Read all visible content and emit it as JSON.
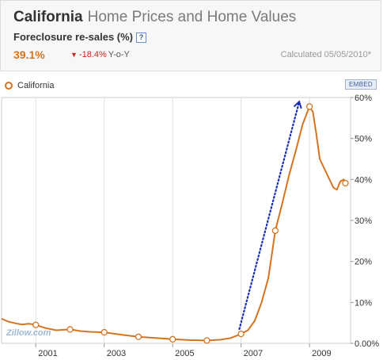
{
  "header": {
    "state": "California",
    "title_rest": "Home Prices and Home Values",
    "metric_label": "Foreclosure re-sales (%)",
    "help_label": "?",
    "current_value": "39.1%",
    "change": "-18.4%",
    "change_suffix": "Y-o-Y",
    "calculated": "Calculated 05/05/2010*"
  },
  "legend": {
    "label": "California"
  },
  "embed_label": "EMBED",
  "watermark": "Zillow.com",
  "colors": {
    "series": "#d4741f",
    "arrow": "#1a2fb8",
    "grid": "#e0e0e0"
  },
  "chart_data": {
    "type": "line",
    "x_unit": "year",
    "xlim": [
      2000.0,
      2010.2
    ],
    "ylim": [
      0,
      60
    ],
    "y_ticks": [
      "0.00%",
      "10%",
      "20%",
      "30%",
      "40%",
      "50%",
      "60%"
    ],
    "x_ticks": [
      "2001",
      "2003",
      "2005",
      "2007",
      "2009"
    ],
    "grid": "vertical",
    "series": [
      {
        "x": [
          2000.0,
          2000.2,
          2000.4,
          2000.6,
          2000.8,
          2001.0,
          2001.3,
          2001.6,
          2002.0,
          2002.3,
          2002.6,
          2003.0,
          2003.5,
          2004.0,
          2004.5,
          2005.0,
          2005.5,
          2006.0,
          2006.4,
          2006.7,
          2007.0,
          2007.2,
          2007.4,
          2007.6,
          2007.8,
          2008.0,
          2008.2,
          2008.4,
          2008.6,
          2008.8,
          2009.0,
          2009.1,
          2009.2,
          2009.3,
          2009.5,
          2009.7,
          2009.8,
          2009.9,
          2010.0,
          2010.05
        ],
        "y": [
          6.0,
          5.3,
          4.9,
          4.6,
          4.8,
          4.5,
          3.7,
          3.2,
          3.4,
          3.0,
          2.8,
          2.7,
          2.1,
          1.6,
          1.3,
          1.0,
          0.8,
          0.7,
          0.9,
          1.3,
          2.3,
          3.2,
          5.5,
          10.0,
          16.0,
          27.5,
          34.0,
          41.0,
          47.0,
          53.5,
          57.8,
          56.5,
          51.0,
          45.0,
          41.5,
          38.0,
          37.5,
          39.5,
          40.0,
          39.1
        ]
      }
    ],
    "markers": [
      {
        "x": 2001.0,
        "y": 4.5
      },
      {
        "x": 2002.0,
        "y": 3.4
      },
      {
        "x": 2003.0,
        "y": 2.7
      },
      {
        "x": 2004.0,
        "y": 1.6
      },
      {
        "x": 2005.0,
        "y": 1.0
      },
      {
        "x": 2006.0,
        "y": 0.7
      },
      {
        "x": 2007.0,
        "y": 2.3
      },
      {
        "x": 2008.0,
        "y": 27.5
      },
      {
        "x": 2009.0,
        "y": 57.8
      },
      {
        "x": 2010.05,
        "y": 39.1
      }
    ],
    "annotation_arrow": {
      "from": {
        "x": 2006.95,
        "y": 3.5
      },
      "to": {
        "x": 2008.7,
        "y": 59.0
      }
    }
  }
}
